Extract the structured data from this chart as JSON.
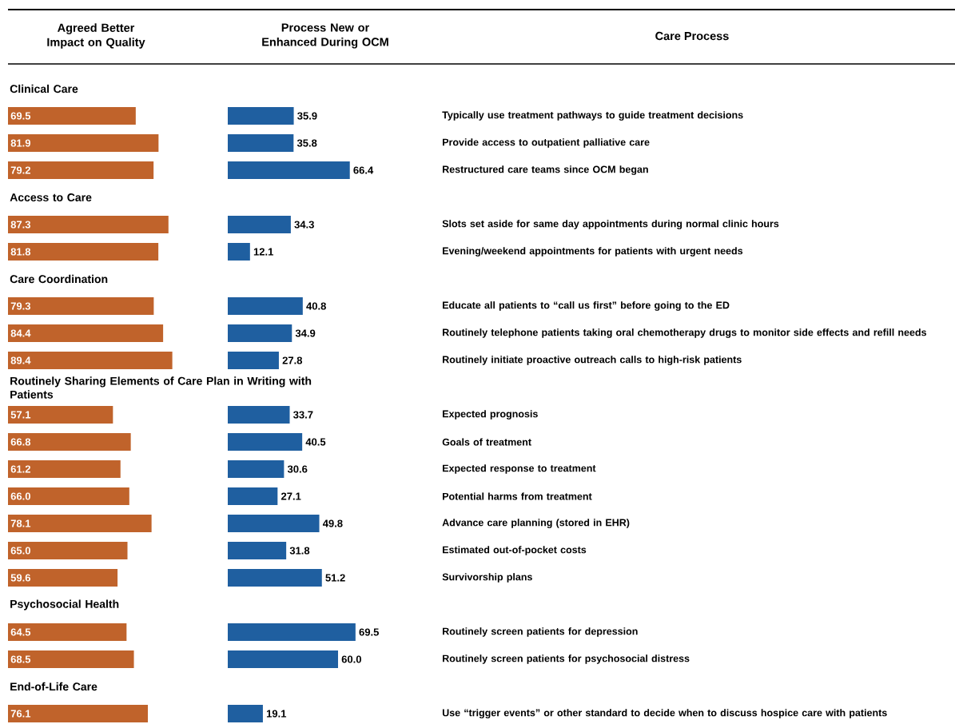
{
  "chart_data": [
    {
      "type": "bar",
      "orientation": "horizontal",
      "title": "Agreed Better Impact on Quality",
      "color": "#c0632b",
      "categories": [
        "Clinical Care",
        null,
        null,
        null,
        "Access to Care",
        null,
        null,
        "Care Coordination",
        null,
        null,
        null,
        "Routinely Sharing Elements of Care Plan in Writing with Patients",
        null,
        null,
        null,
        null,
        null,
        null,
        null,
        "Psychosocial Health",
        null,
        null,
        "End-of-Life Care",
        null
      ],
      "values": [
        null,
        69.5,
        81.9,
        79.2,
        null,
        87.3,
        81.8,
        null,
        79.3,
        84.4,
        89.4,
        null,
        57.1,
        66.8,
        61.2,
        66.0,
        78.1,
        65.0,
        59.6,
        null,
        64.5,
        68.5,
        null,
        76.1
      ],
      "value_labels": [
        null,
        "69.5",
        "81.9",
        "79.2",
        null,
        "87.3",
        "81.8",
        null,
        "79.3",
        "84.4",
        "89.4",
        null,
        "57.1",
        "66.8",
        "61.2",
        "66.0",
        "78.1",
        "65.0",
        "59.6",
        null,
        "64.5",
        "68.5",
        null,
        "76.1"
      ]
    },
    {
      "type": "bar",
      "orientation": "horizontal",
      "title": "Process New or Enhanced During OCM",
      "ylabel": "Care Process",
      "color": "#1f5fa0",
      "categories": [
        null,
        "Typically use treatment pathways to guide treatment decisions",
        "Provide access to outpatient palliative care",
        "Restructured care teams since OCM began",
        null,
        "Slots set aside for same day appointments during normal clinic hours",
        "Evening/weekend appointments for patients with urgent needs",
        null,
        "Educate all patients to “call us first” before going to the ED",
        "Routinely telephone patients taking oral chemotherapy drugs to monitor side effects and refill needs",
        "Routinely initiate proactive outreach calls to high-risk patients",
        null,
        "Expected prognosis",
        "Goals of treatment",
        "Expected response to treatment",
        "Potential harms from treatment",
        "Advance care planning (stored in EHR)",
        "Estimated out-of-pocket costs",
        "Survivorship plans",
        null,
        "Routinely screen patients for depression",
        "Routinely screen patients for psychosocial distress",
        null,
        "Use “trigger events” or other standard to decide when to discuss hospice care with patients"
      ],
      "values": [
        null,
        35.9,
        35.8,
        66.4,
        null,
        34.3,
        12.1,
        null,
        40.8,
        34.9,
        27.8,
        null,
        33.7,
        40.5,
        30.6,
        27.1,
        49.8,
        31.8,
        51.2,
        null,
        69.5,
        60.0,
        null,
        19.1
      ],
      "value_labels": [
        null,
        "35.9",
        "35.8",
        "66.4",
        null,
        "34.3",
        "12.1",
        null,
        "40.8",
        "34.9",
        "27.8",
        null,
        "33.7",
        "40.5",
        "30.6",
        "27.1",
        "49.8",
        "31.8",
        "51.2",
        null,
        "69.5",
        "60.0",
        null,
        "19.1"
      ]
    }
  ]
}
